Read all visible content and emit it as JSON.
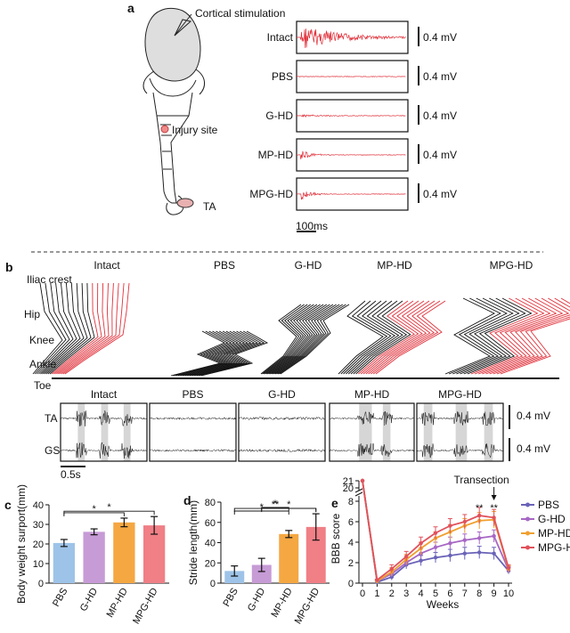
{
  "panel_a": {
    "letter": "a",
    "cortical_label": "Cortical stimulation",
    "injury_label": "Injury site",
    "ta_label": "TA",
    "scale_label": "0.4 mV",
    "time_scale": "100ms",
    "traces": [
      {
        "name": "Intact",
        "amp": 1.0,
        "decay": 0.35
      },
      {
        "name": "PBS",
        "amp": 0.0,
        "decay": 0.1
      },
      {
        "name": "G-HD",
        "amp": 0.08,
        "decay": 0.3
      },
      {
        "name": "MP-HD",
        "amp": 0.45,
        "decay": 0.08
      },
      {
        "name": "MPG-HD",
        "amp": 0.5,
        "decay": 0.08
      }
    ]
  },
  "panel_b": {
    "letter": "b",
    "groups": [
      "Intact",
      "PBS",
      "G-HD",
      "MP-HD",
      "MPG-HD"
    ],
    "joints": [
      "Iliac crest",
      "Hip",
      "Knee",
      "Ankle",
      "Toe"
    ],
    "emg_channels": [
      "TA",
      "GS"
    ],
    "scale_label": "0.4 mV",
    "time_scale": "0.5s",
    "colors": {
      "stance": "#111111",
      "swing": "#e0303a",
      "shade": "#d6d6d6"
    }
  },
  "chart_data": [
    {
      "panel": "c",
      "type": "bar",
      "ylabel": "Body weight surport(mm)",
      "categories": [
        "PBS",
        "G-HD",
        "MP-HD",
        "MPG-HD"
      ],
      "values": [
        20.5,
        26.2,
        31.0,
        29.5
      ],
      "errors": [
        1.8,
        1.5,
        2.2,
        4.5
      ],
      "colors": [
        "#9ec3e8",
        "#c79bd6",
        "#f5a742",
        "#f07f86"
      ],
      "ylim": [
        0,
        40
      ],
      "yticks": [
        0,
        10,
        20,
        30,
        40
      ],
      "significance": [
        {
          "from": 0,
          "to": 2,
          "label": "*"
        },
        {
          "from": 0,
          "to": 3,
          "label": "*"
        }
      ]
    },
    {
      "panel": "d",
      "type": "bar",
      "ylabel": "Stride length(mm)",
      "categories": [
        "PBS",
        "G-HD",
        "MP-HD",
        "MPG-HD"
      ],
      "values": [
        12.0,
        18.0,
        48.5,
        55.5
      ],
      "errors": [
        5.0,
        6.5,
        3.5,
        13.0
      ],
      "colors": [
        "#9ec3e8",
        "#c79bd6",
        "#f5a742",
        "#f07f86"
      ],
      "ylim": [
        0,
        80
      ],
      "yticks": [
        0,
        20,
        40,
        60,
        80
      ],
      "significance": [
        {
          "from": 0,
          "to": 3,
          "label": "**"
        },
        {
          "from": 0,
          "to": 2,
          "label": "*"
        },
        {
          "from": 1,
          "to": 3,
          "label": "*"
        },
        {
          "from": 1,
          "to": 2,
          "label": "*"
        }
      ]
    },
    {
      "panel": "e",
      "type": "line",
      "xlabel": "Weeks",
      "ylabel": "BBB score",
      "x": [
        0,
        1,
        2,
        3,
        4,
        5,
        6,
        7,
        8,
        9,
        10
      ],
      "xticks": [
        0,
        1,
        2,
        3,
        4,
        5,
        6,
        7,
        8,
        9,
        10
      ],
      "yticks": [
        0,
        2,
        4,
        6,
        8,
        20,
        21
      ],
      "annotation": "Transection",
      "star_labels": [
        {
          "x": 8,
          "label": "**"
        },
        {
          "x": 9,
          "label": "**"
        }
      ],
      "series": [
        {
          "name": "PBS",
          "color": "#6a63b8",
          "values": [
            21,
            0.1,
            0.6,
            1.8,
            2.2,
            2.5,
            2.7,
            2.9,
            3.0,
            2.9,
            1.2
          ],
          "errors": [
            0,
            0.1,
            0.3,
            0.4,
            0.5,
            0.5,
            0.6,
            0.6,
            0.6,
            0.6,
            0.3
          ]
        },
        {
          "name": "G-HD",
          "color": "#a767c4",
          "values": [
            21,
            0.2,
            0.9,
            2.0,
            2.9,
            3.5,
            3.9,
            4.2,
            4.4,
            4.6,
            1.3
          ],
          "errors": [
            0,
            0.1,
            0.3,
            0.4,
            0.5,
            0.5,
            0.6,
            0.6,
            0.6,
            0.6,
            0.3
          ]
        },
        {
          "name": "MP-HD",
          "color": "#f0a030",
          "values": [
            21,
            0.2,
            1.1,
            2.3,
            3.4,
            4.4,
            5.0,
            5.6,
            6.1,
            6.2,
            1.4
          ],
          "errors": [
            0,
            0.1,
            0.4,
            0.5,
            0.6,
            0.6,
            0.7,
            0.7,
            0.8,
            0.8,
            0.3
          ]
        },
        {
          "name": "MPG-HD",
          "color": "#e0525c",
          "values": [
            21,
            0.3,
            1.4,
            2.6,
            3.9,
            4.9,
            5.6,
            6.0,
            6.6,
            6.4,
            1.5
          ],
          "errors": [
            0,
            0.1,
            0.4,
            0.5,
            0.6,
            0.6,
            0.7,
            0.7,
            0.8,
            0.8,
            0.3
          ]
        }
      ],
      "legend_position": "right"
    }
  ],
  "panel_letters": {
    "c": "c",
    "d": "d",
    "e": "e"
  }
}
